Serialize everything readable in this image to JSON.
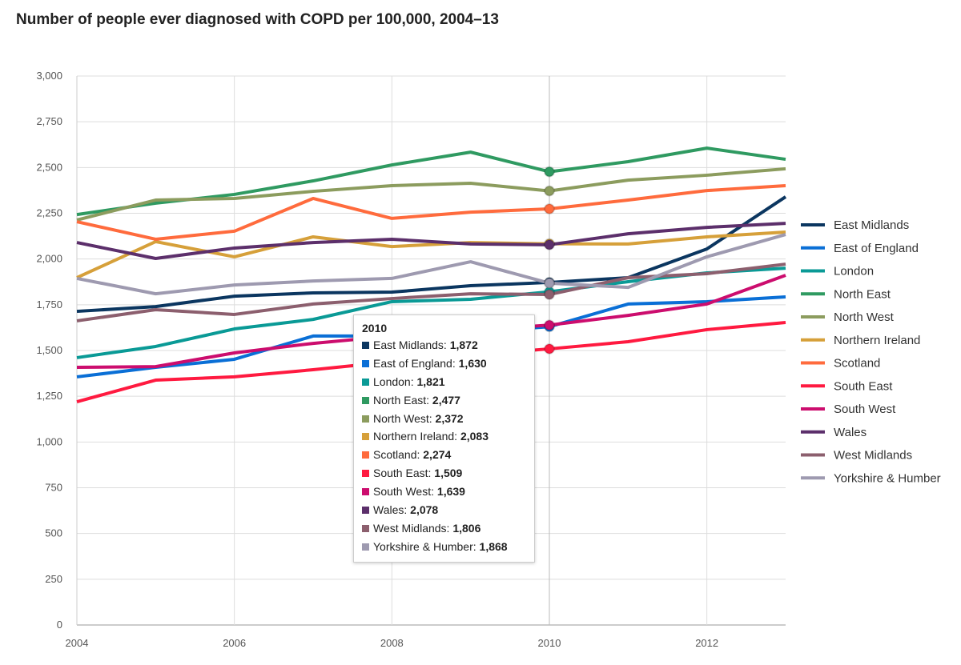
{
  "chart_data": {
    "type": "line",
    "title": "Number of people ever diagnosed with COPD per 100,000, 2004–13",
    "xlabel": "",
    "ylabel": "",
    "x": [
      2004,
      2005,
      2006,
      2007,
      2008,
      2009,
      2010,
      2011,
      2012,
      2013
    ],
    "xticks": [
      "2004",
      "2006",
      "2008",
      "2010",
      "2012"
    ],
    "yticks": [
      "0",
      "250",
      "500",
      "750",
      "1,000",
      "1,250",
      "1,500",
      "1,750",
      "2,000",
      "2,250",
      "2,500",
      "2,750",
      "3,000"
    ],
    "ylim": [
      0,
      3000
    ],
    "grid": true,
    "legend": "right",
    "series": [
      {
        "name": "East Midlands",
        "color": "#0b3660",
        "values": [
          1714,
          1740,
          1797,
          1815,
          1819,
          1854,
          1872,
          1898,
          2055,
          2340
        ]
      },
      {
        "name": "East of England",
        "color": "#0a6fd6",
        "values": [
          1356,
          1408,
          1452,
          1579,
          1579,
          1600,
          1630,
          1754,
          1767,
          1793
        ]
      },
      {
        "name": "London",
        "color": "#0a9a96",
        "values": [
          1461,
          1522,
          1618,
          1670,
          1767,
          1780,
          1821,
          1876,
          1924,
          1950
        ]
      },
      {
        "name": "North East",
        "color": "#2f9a61",
        "values": [
          2243,
          2305,
          2353,
          2427,
          2514,
          2584,
          2477,
          2532,
          2606,
          2545
        ]
      },
      {
        "name": "North West",
        "color": "#8c9c5e",
        "values": [
          2213,
          2322,
          2331,
          2370,
          2401,
          2414,
          2372,
          2431,
          2458,
          2493
        ]
      },
      {
        "name": "Northern Ireland",
        "color": "#d6a03a",
        "values": [
          1898,
          2095,
          2012,
          2121,
          2068,
          2090,
          2083,
          2082,
          2121,
          2147
        ]
      },
      {
        "name": "Scotland",
        "color": "#ff6b3d",
        "values": [
          2204,
          2108,
          2152,
          2331,
          2222,
          2256,
          2274,
          2322,
          2374,
          2401
        ]
      },
      {
        "name": "South East",
        "color": "#ff1a40",
        "values": [
          1220,
          1338,
          1356,
          1395,
          1439,
          1475,
          1509,
          1548,
          1614,
          1653
        ]
      },
      {
        "name": "South West",
        "color": "#cc0d6e",
        "values": [
          1408,
          1412,
          1487,
          1539,
          1579,
          1610,
          1639,
          1692,
          1754,
          1911
        ]
      },
      {
        "name": "Wales",
        "color": "#5c2f6b",
        "values": [
          2090,
          2003,
          2060,
          2090,
          2108,
          2082,
          2078,
          2138,
          2173,
          2195
        ]
      },
      {
        "name": "West Midlands",
        "color": "#8c5f6e",
        "values": [
          1662,
          1723,
          1697,
          1754,
          1784,
          1810,
          1806,
          1898,
          1920,
          1972
        ]
      },
      {
        "name": "Yorkshire & Humber",
        "color": "#9e9ab0",
        "values": [
          1894,
          1810,
          1858,
          1880,
          1894,
          1985,
          1868,
          1845,
          2012,
          2134
        ]
      }
    ],
    "tooltip": {
      "year": "2010",
      "items": [
        {
          "label": "East Midlands:",
          "value": "1,872"
        },
        {
          "label": "East of England:",
          "value": "1,630"
        },
        {
          "label": "London:",
          "value": "1,821"
        },
        {
          "label": "North East:",
          "value": "2,477"
        },
        {
          "label": "North West:",
          "value": "2,372"
        },
        {
          "label": "Northern Ireland:",
          "value": "2,083"
        },
        {
          "label": "Scotland:",
          "value": "2,274"
        },
        {
          "label": "South East:",
          "value": "1,509"
        },
        {
          "label": "South West:",
          "value": "1,639"
        },
        {
          "label": "Wales:",
          "value": "2,078"
        },
        {
          "label": "West Midlands:",
          "value": "1,806"
        },
        {
          "label": "Yorkshire & Humber:",
          "value": "1,868"
        }
      ]
    }
  }
}
